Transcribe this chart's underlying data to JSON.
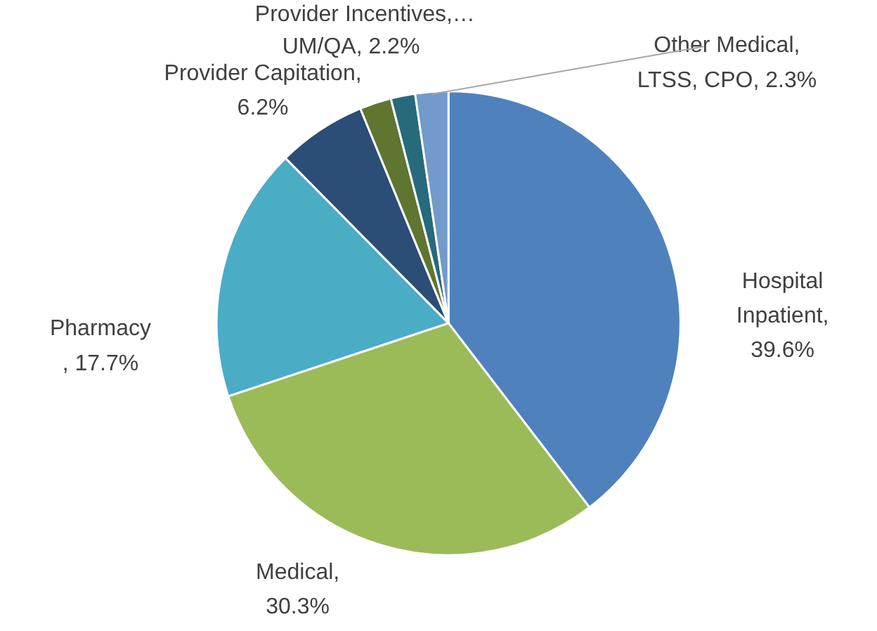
{
  "chart_data": {
    "type": "pie",
    "categories": [
      "Hospital Inpatient",
      "Medical",
      "Pharmacy",
      "Provider Capitation",
      "UM/QA",
      "Provider Incentives,…",
      "Other Medical, LTSS, CPO"
    ],
    "values": [
      39.6,
      30.3,
      17.7,
      6.2,
      2.2,
      1.7,
      2.3
    ],
    "colors": [
      "#4f81bd",
      "#9bbb59",
      "#4bacc6",
      "#2c4d75",
      "#5f7530",
      "#276a7c",
      "#729aca"
    ],
    "value_labels": [
      ", 39.6%",
      ", 30.3%",
      ", 17.7%",
      ", 6.2%",
      ", 2.2%",
      null,
      ", 2.3%"
    ]
  }
}
